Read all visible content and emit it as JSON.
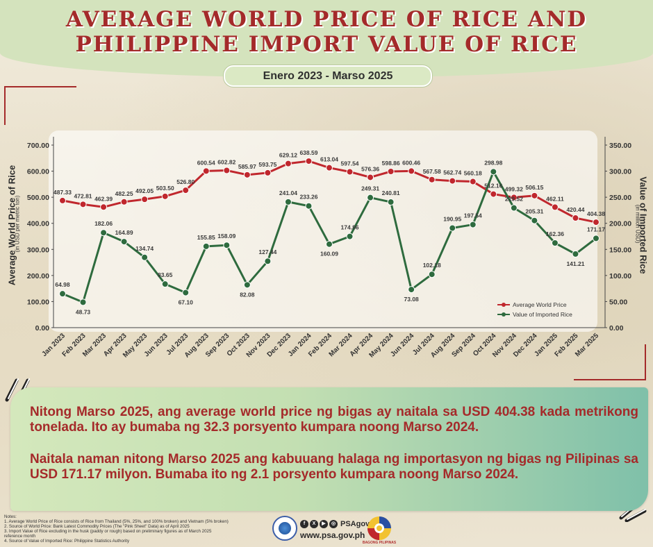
{
  "header": {
    "title_line1": "AVERAGE WORLD PRICE OF RICE AND",
    "title_line2": "PHILIPPINE IMPORT VALUE OF RICE",
    "period": "Enero 2023 - Marso 2025"
  },
  "colors": {
    "title": "#a42a2a",
    "world_price_line": "#c0272d",
    "imported_value_line": "#2e6b3e",
    "text_box_text": "#a52a2a"
  },
  "chart_data": {
    "type": "line",
    "categories": [
      "Jan 2023",
      "Feb 2023",
      "Mar 2023",
      "Apr 2023",
      "May 2023",
      "Jun 2023",
      "Jul 2023",
      "Aug 2023",
      "Sep 2023",
      "Oct 2023",
      "Nov 2023",
      "Dec 2023",
      "Jan 2024",
      "Feb 2024",
      "Mar 2024",
      "Apr 2024",
      "May 2024",
      "Jun 2024",
      "Jul 2024",
      "Aug 2024",
      "Sep 2024",
      "Oct 2024",
      "Nov 2024",
      "Dec 2024",
      "Jan 2025",
      "Feb 2025",
      "Mar 2025"
    ],
    "series": [
      {
        "name": "Average World Price",
        "axis": "left",
        "color": "#c0272d",
        "values": [
          487.33,
          472.81,
          462.39,
          482.25,
          492.05,
          503.5,
          526.8,
          600.54,
          602.82,
          585.97,
          593.75,
          629.12,
          638.59,
          613.04,
          597.54,
          576.36,
          598.86,
          600.46,
          567.58,
          562.74,
          560.18,
          512.16,
          499.32,
          506.15,
          462.11,
          420.44,
          404.38
        ],
        "labels": [
          "487.33",
          "472.81",
          "462.39",
          "482.25",
          "492.05",
          "503.50",
          "526.80",
          "600.54",
          "602.82",
          "585.97",
          "593.75",
          "629.12",
          "638.59",
          "613.04",
          "597.54",
          "576.36",
          "598.86",
          "600.46",
          "567.58",
          "562.74",
          "560.18",
          "512.16",
          "499.32",
          "506.15",
          "462.11",
          "420.44",
          "404.38"
        ]
      },
      {
        "name": "Value of Imported Rice",
        "axis": "right",
        "color": "#2e6b3e",
        "values": [
          64.98,
          48.73,
          182.06,
          164.89,
          134.74,
          83.65,
          67.1,
          155.85,
          158.09,
          82.08,
          127.44,
          241.04,
          233.26,
          160.09,
          174.86,
          249.31,
          240.81,
          73.08,
          102.18,
          190.95,
          197.54,
          298.98,
          229.52,
          205.31,
          162.36,
          141.21,
          171.17
        ],
        "labels": [
          "64.98",
          "48.73",
          "182.06",
          "164.89",
          "134.74",
          "83.65",
          "67.10",
          "155.85",
          "158.09",
          "82.08",
          "127.44",
          "241.04",
          "233.26",
          "160.09",
          "174.86",
          "249.31",
          "240.81",
          "73.08",
          "102.18",
          "190.95",
          "197.54",
          "298.98",
          "229.52",
          "205.31",
          "162.36",
          "141.21",
          "171.17"
        ]
      }
    ],
    "y_left": {
      "label": "Average World Price of Rice",
      "sublabel": "(in USD per metric ton)",
      "ylim": [
        0,
        700
      ],
      "ticks": [
        "0.00",
        "100.00",
        "200.00",
        "300.00",
        "400.00",
        "500.00",
        "600.00",
        "700.00"
      ]
    },
    "y_right": {
      "label": "Value of Imported Rice",
      "sublabel": "(in million USD)",
      "ylim": [
        0,
        350
      ],
      "ticks": [
        "0.00",
        "50.00",
        "100.00",
        "150.00",
        "200.00",
        "250.00",
        "300.00",
        "350.00"
      ]
    },
    "grid": false,
    "legend_position": "bottom-right"
  },
  "text_box": {
    "paragraph1": "Nitong Marso 2025, ang average world price ng bigas ay naitala sa USD 404.38 kada metrikong tonelada. Ito ay bumaba ng 32.3 porsyento kumpara noong Marso 2024.",
    "paragraph2": "Naitala naman nitong Marso 2025 ang kabuuang halaga ng importasyon ng bigas ng Pilipinas sa USD 171.17 milyon. Bumaba ito ng 2.1 porsyento kumpara noong Marso 2024."
  },
  "notes": {
    "heading": "Notes:",
    "items": [
      "1. Average World Price of Rice consists of Rice from Thailand (5%, 25%, and 100% broken) and Vietnam (5% broken)",
      "2. Source of World Price: Bank Latest Commodity Prices (The \"Pink Sheet\" Data) as of April 2025",
      "3. Import Value of Rice excluding in the husk (paddy or rough) based on preliminary figures as of March 2025",
      "    reference month",
      "4. Source of Value of Imported Rice: Philippine Statistics Authority"
    ]
  },
  "footer": {
    "social_handle": "PSAgovph",
    "website": "www.psa.gov.ph",
    "social_icons": [
      "facebook-icon",
      "x-icon",
      "youtube-icon",
      "instagram-icon"
    ],
    "bp_logo_text": "BAGONG PILIPINAS"
  }
}
